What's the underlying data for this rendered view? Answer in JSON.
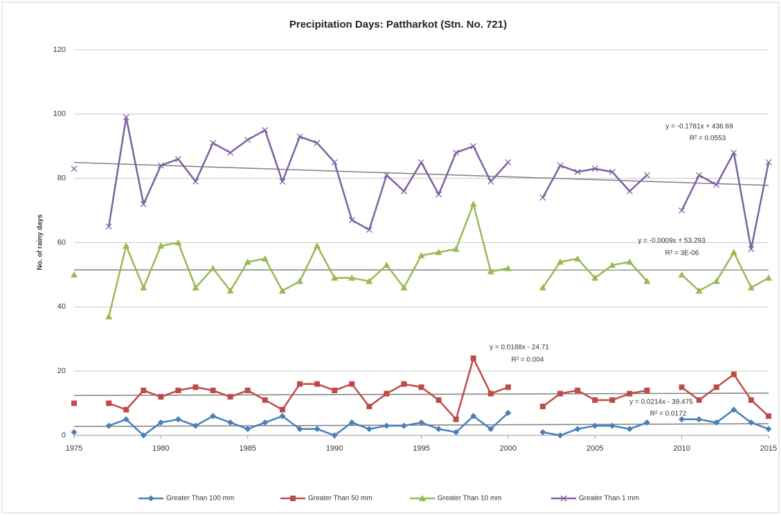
{
  "chart_data": {
    "type": "line",
    "title": "Precipitation Days: Pattharkot (Stn. No. 721)",
    "ylabel": "No. of rainy days",
    "x": [
      1975,
      1976,
      1977,
      1978,
      1979,
      1980,
      1981,
      1982,
      1983,
      1984,
      1985,
      1986,
      1987,
      1988,
      1989,
      1990,
      1991,
      1992,
      1993,
      1994,
      1995,
      1996,
      1997,
      1998,
      1999,
      2000,
      2001,
      2002,
      2003,
      2004,
      2005,
      2006,
      2007,
      2008,
      2009,
      2010,
      2011,
      2012,
      2013,
      2014,
      2015
    ],
    "xlim": [
      1975,
      2015
    ],
    "xticks": [
      1975,
      1980,
      1985,
      1990,
      1995,
      2000,
      2005,
      2010,
      2015
    ],
    "ylim": [
      0,
      120
    ],
    "yticks": [
      0,
      20,
      40,
      60,
      80,
      100,
      120
    ],
    "grid": true,
    "legend": "bottom",
    "series": [
      {
        "name": "Greater Than 100 mm",
        "color": "#4a7ebb",
        "marker": "diamond",
        "values": [
          1,
          null,
          3,
          5,
          0,
          4,
          5,
          3,
          6,
          4,
          2,
          4,
          6,
          2,
          2,
          0,
          4,
          2,
          3,
          3,
          4,
          2,
          1,
          6,
          2,
          7,
          null,
          1,
          0,
          2,
          3,
          3,
          2,
          4,
          null,
          5,
          5,
          4,
          8,
          4,
          2
        ]
      },
      {
        "name": "Greater Than 50 mm",
        "color": "#be4b48",
        "marker": "square",
        "values": [
          10,
          null,
          10,
          8,
          14,
          12,
          14,
          15,
          14,
          12,
          14,
          11,
          8,
          16,
          16,
          14,
          16,
          9,
          13,
          16,
          15,
          11,
          5,
          24,
          13,
          15,
          null,
          9,
          13,
          14,
          11,
          11,
          13,
          14,
          null,
          15,
          11,
          15,
          19,
          11,
          6
        ]
      },
      {
        "name": "Greater Than 10 mm",
        "color": "#98b954",
        "marker": "triangle",
        "values": [
          50,
          null,
          37,
          59,
          46,
          59,
          60,
          46,
          52,
          45,
          54,
          55,
          45,
          48,
          59,
          49,
          49,
          48,
          53,
          46,
          56,
          57,
          58,
          72,
          51,
          52,
          null,
          46,
          54,
          55,
          49,
          53,
          54,
          48,
          null,
          50,
          45,
          48,
          57,
          46,
          49
        ]
      },
      {
        "name": "Greater Than 1 mm",
        "color": "#7d60a0",
        "marker": "cross",
        "values": [
          83,
          null,
          65,
          99,
          72,
          84,
          86,
          79,
          91,
          88,
          92,
          95,
          79,
          93,
          91,
          85,
          67,
          64,
          81,
          76,
          85,
          75,
          88,
          90,
          79,
          85,
          null,
          74,
          84,
          82,
          83,
          82,
          76,
          81,
          null,
          70,
          81,
          78,
          88,
          58,
          85
        ]
      }
    ],
    "trendlines": [
      {
        "equation": "y = 0.0214x - 39.475",
        "r2": "R² = 0.0172",
        "color": "#7f7f7f",
        "x": [
          1975,
          2015
        ],
        "values": [
          2.79,
          3.64
        ]
      },
      {
        "equation": "y = 0.0188x - 24.71",
        "r2": "R² = 0.004",
        "color": "#7f7f7f",
        "x": [
          1975,
          2015
        ],
        "values": [
          12.42,
          13.17
        ]
      },
      {
        "equation": "y = -0.0009x + 53.293",
        "r2": "R² = 3E-06",
        "color": "#7f7f7f",
        "x": [
          1975,
          2015
        ],
        "values": [
          51.52,
          51.48
        ]
      },
      {
        "equation": "y = -0.1781x + 436.69",
        "r2": "R² = 0.0553",
        "color": "#7f7f7f",
        "x": [
          1975,
          2015
        ],
        "values": [
          84.94,
          77.82
        ]
      }
    ]
  }
}
